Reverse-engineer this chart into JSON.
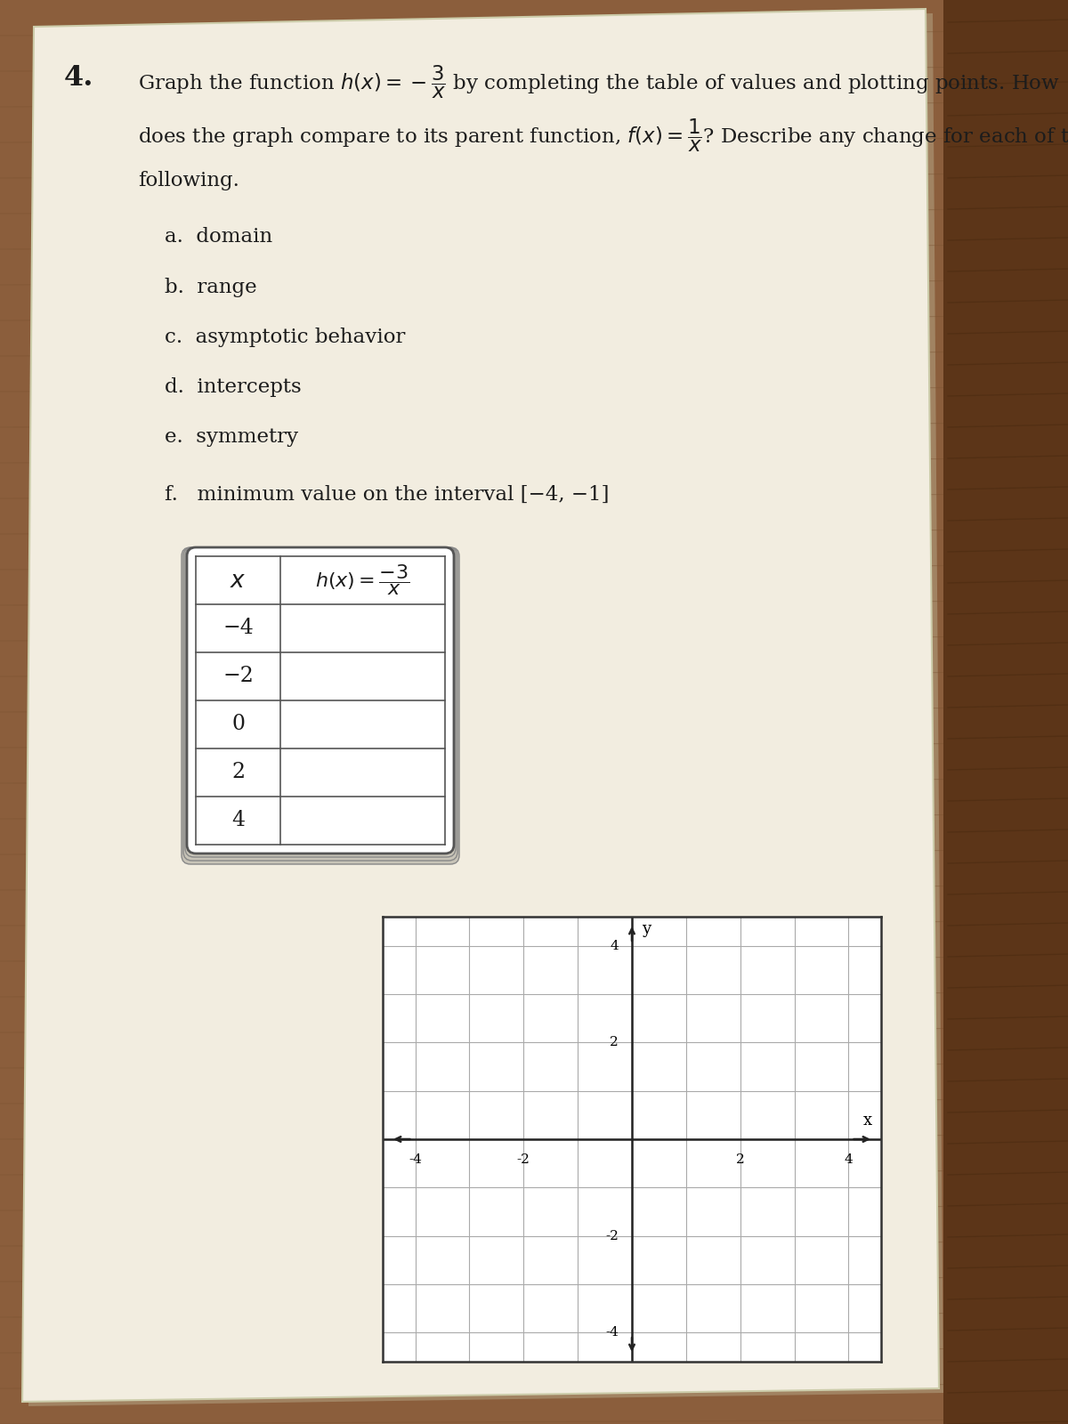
{
  "problem_number": "4.",
  "parts": [
    "a.  domain",
    "b.  range",
    "c.  asymptotic behavior",
    "d.  intercepts",
    "e.  symmetry",
    "f.   minimum value on the interval [−4, −1]"
  ],
  "table_x_values": [
    "−4",
    "−2",
    "0",
    "2",
    "4"
  ],
  "grid_xlabel": "x",
  "grid_ylabel": "y",
  "paper_color": "#f0ece0",
  "paper_shadow": "#d4cfc4",
  "wood_color": "#7a4e2d",
  "wood_color2": "#5c3518",
  "text_color": "#1c1c1c",
  "grid_line_color": "#999999",
  "table_border_color": "#444444",
  "axis_color": "#222222",
  "line1": "Graph the function $h(x)=-\\dfrac{3}{x}$ by completing the table of values and plotting points. How",
  "line2": "does the graph compare to its parent function, $f(x) = \\dfrac{1}{x}$? Describe any change for each of the",
  "line3": "following."
}
